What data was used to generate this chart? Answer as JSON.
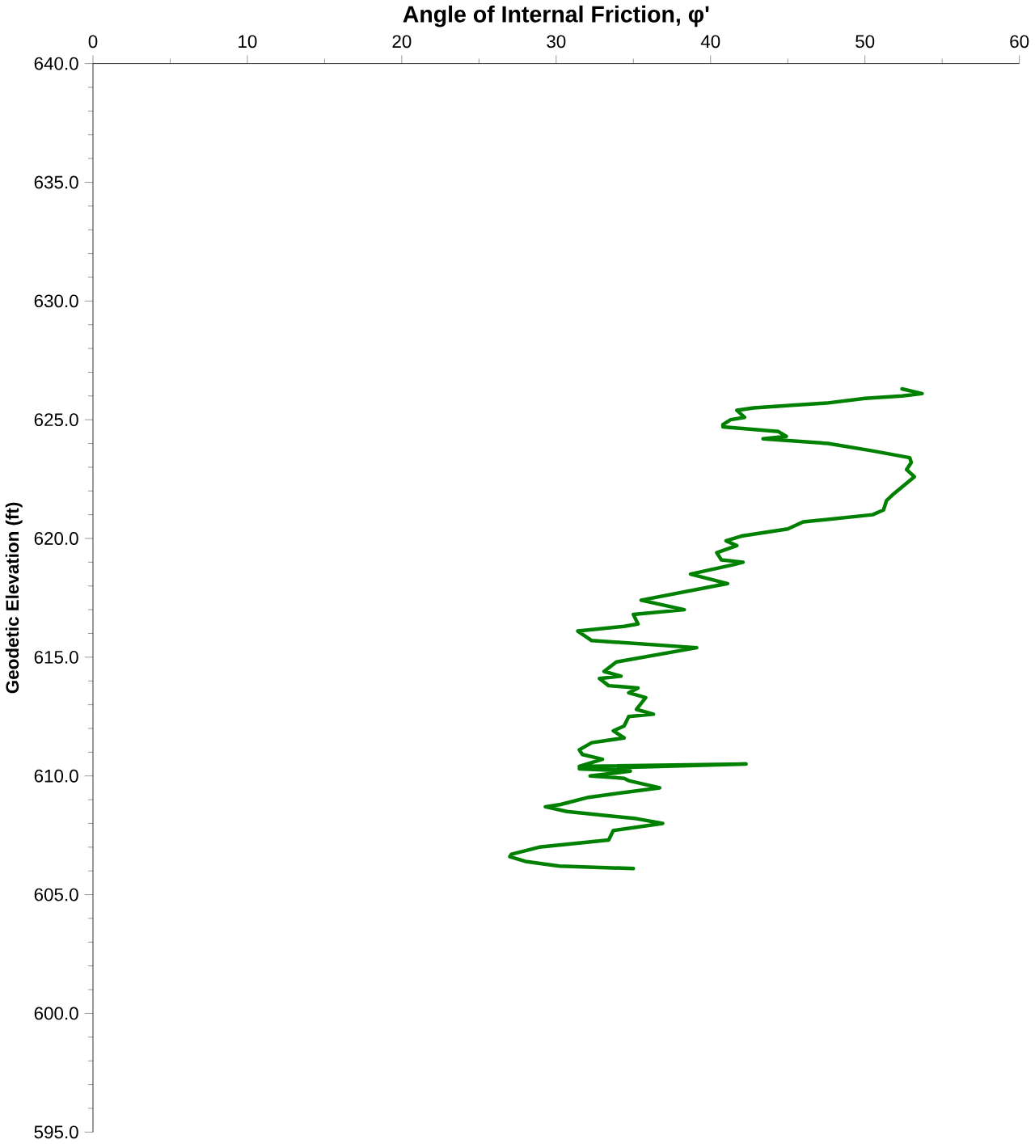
{
  "chart_data": {
    "type": "line",
    "xlabel": "Angle of Internal Friction, φ'",
    "ylabel": "Geodetic Elevation (ft)",
    "xlim": [
      0,
      60
    ],
    "xticks": [
      0,
      10,
      20,
      30,
      40,
      50,
      60
    ],
    "ylim": [
      595,
      640
    ],
    "yticks": [
      {
        "value": 595,
        "label": "595.0"
      },
      {
        "value": 600,
        "label": "600.0"
      },
      {
        "value": 605,
        "label": "605.0"
      },
      {
        "value": 610,
        "label": "610.0"
      },
      {
        "value": 615,
        "label": "615.0"
      },
      {
        "value": 620,
        "label": "620.0"
      },
      {
        "value": 625,
        "label": "625.0"
      },
      {
        "value": 630,
        "label": "630.0"
      },
      {
        "value": 635,
        "label": "635.0"
      },
      {
        "value": 640,
        "label": "640.0"
      }
    ],
    "marker": "none",
    "line_style": "solid",
    "series": [
      {
        "color": "#008000",
        "x": [
          52.4,
          53.7,
          52.4,
          50.0,
          47.5,
          45.1,
          42.8,
          41.7,
          42.2,
          41.3,
          40.8,
          40.8,
          44.4,
          44.9,
          43.4,
          47.6,
          50.4,
          52.9,
          53.0,
          52.7,
          53.2,
          51.9,
          51.4,
          51.2,
          50.5,
          46.0,
          45.0,
          42.0,
          41.0,
          41.7,
          40.4,
          40.7,
          42.1,
          41.5,
          38.7,
          41.1,
          35.5,
          38.3,
          35.0,
          35.3,
          34.4,
          31.4,
          32.3,
          39.1,
          33.9,
          33.1,
          34.2,
          32.8,
          33.4,
          35.3,
          34.7,
          35.8,
          35.2,
          36.3,
          34.7,
          34.4,
          33.7,
          34.4,
          32.3,
          31.5,
          31.7,
          33.0,
          31.5,
          42.3,
          31.5,
          34.8,
          32.2,
          34.4,
          34.7,
          36.7,
          32.1,
          30.3,
          29.3,
          30.7,
          35.2,
          36.9,
          33.7,
          33.4,
          28.9,
          27.1,
          27.0,
          28.0,
          30.2,
          35.0
        ],
        "values": [
          626.3,
          626.1,
          626.0,
          625.9,
          625.7,
          625.6,
          625.5,
          625.4,
          625.1,
          625.0,
          624.8,
          624.7,
          624.5,
          624.3,
          624.2,
          624.0,
          623.7,
          623.4,
          623.2,
          622.9,
          622.6,
          621.9,
          621.6,
          621.2,
          621.0,
          620.7,
          620.4,
          620.1,
          619.9,
          619.7,
          619.4,
          619.1,
          619.0,
          618.9,
          618.5,
          618.1,
          617.4,
          617.0,
          616.8,
          616.4,
          616.3,
          616.1,
          615.7,
          615.4,
          614.8,
          614.4,
          614.2,
          614.1,
          613.8,
          613.7,
          613.5,
          613.3,
          612.8,
          612.6,
          612.5,
          612.1,
          611.9,
          611.6,
          611.4,
          611.1,
          610.9,
          610.7,
          610.4,
          610.5,
          610.3,
          610.2,
          610.0,
          609.9,
          609.8,
          609.5,
          609.1,
          608.8,
          608.7,
          608.5,
          608.2,
          608.0,
          607.7,
          607.3,
          607.0,
          606.7,
          606.6,
          606.4,
          606.2,
          606.1
        ]
      }
    ]
  }
}
